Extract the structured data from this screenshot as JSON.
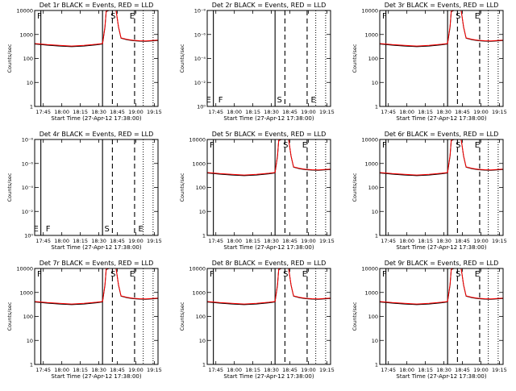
{
  "chart_data": [
    {
      "type": "line",
      "title": "Det 1r BLACK = Events, RED = LLD",
      "mode": "normal",
      "markers": [
        "F",
        "S",
        "E"
      ]
    },
    {
      "type": "line",
      "title": "Det 2r BLACK = Events, RED = LLD",
      "mode": "empty",
      "markers": [
        "E",
        "F",
        "S",
        "E"
      ]
    },
    {
      "type": "line",
      "title": "Det 3r BLACK = Events, RED = LLD",
      "mode": "normal",
      "markers": [
        "F",
        "S",
        "E"
      ]
    },
    {
      "type": "line",
      "title": "Det 4r BLACK = Events, RED = LLD",
      "mode": "empty",
      "markers": [
        "E",
        "F",
        "S",
        "E"
      ]
    },
    {
      "type": "line",
      "title": "Det 5r BLACK = Events, RED = LLD",
      "mode": "normal",
      "markers": [
        "F",
        "S",
        "E"
      ]
    },
    {
      "type": "line",
      "title": "Det 6r BLACK = Events, RED = LLD",
      "mode": "normal",
      "markers": [
        "F",
        "S",
        "E"
      ]
    },
    {
      "type": "line",
      "title": "Det 7r BLACK = Events, RED = LLD",
      "mode": "normal",
      "markers": [
        "F",
        "S",
        "E"
      ]
    },
    {
      "type": "line",
      "title": "Det 8r BLACK = Events, RED = LLD",
      "mode": "normal",
      "markers": [
        "F",
        "S",
        "E"
      ]
    },
    {
      "type": "line",
      "title": "Det 9r BLACK = Events, RED = LLD",
      "mode": "normal",
      "markers": [
        "F",
        "S",
        "E"
      ]
    }
  ],
  "shared": {
    "xlabel": "Start Time (27-Apr-12 17:38:00)",
    "ylabel": "Counts/sec",
    "x_ticks": [
      "17:45",
      "18:00",
      "18:15",
      "18:30",
      "18:45",
      "19:00",
      "19:15"
    ],
    "x_tick_min": [
      7,
      22,
      37,
      52,
      67,
      82,
      97
    ],
    "x_range_min": [
      0,
      100
    ],
    "y_ticks_normal": [
      "1",
      "10",
      "100",
      "1000",
      "10000"
    ],
    "y_range_normal_log10": [
      0,
      4
    ],
    "y_ticks_empty": [
      "10⁰",
      "10⁻²",
      "10⁻⁴",
      "10⁻⁶",
      "10⁻⁸"
    ],
    "vlines_min": {
      "solid": [
        5,
        55
      ],
      "dashed": [
        63,
        81
      ],
      "dotted": [
        88,
        96
      ]
    },
    "events_series": {
      "x_min": [
        0,
        5,
        10,
        20,
        30,
        40,
        50,
        55,
        57,
        58,
        60,
        62,
        64,
        66,
        68,
        70,
        75,
        80,
        85,
        90,
        95,
        100
      ],
      "counts_per_sec": [
        400,
        380,
        360,
        330,
        310,
        330,
        370,
        400,
        2000,
        9000,
        10000,
        10000,
        10000,
        10000,
        2000,
        700,
        600,
        550,
        530,
        520,
        540,
        560
      ]
    },
    "lld_series": {
      "x_min": [
        0,
        5,
        10,
        20,
        30,
        40,
        50,
        55,
        57,
        58,
        60,
        62,
        64,
        66,
        68,
        70,
        75,
        80,
        85,
        90,
        95,
        100
      ],
      "counts_per_sec": [
        420,
        400,
        380,
        350,
        330,
        350,
        390,
        420,
        2200,
        9500,
        10000,
        10000,
        10000,
        10000,
        2100,
        720,
        620,
        570,
        550,
        540,
        560,
        580
      ]
    }
  },
  "colors": {
    "events": "#000000",
    "lld": "#ff0000"
  }
}
